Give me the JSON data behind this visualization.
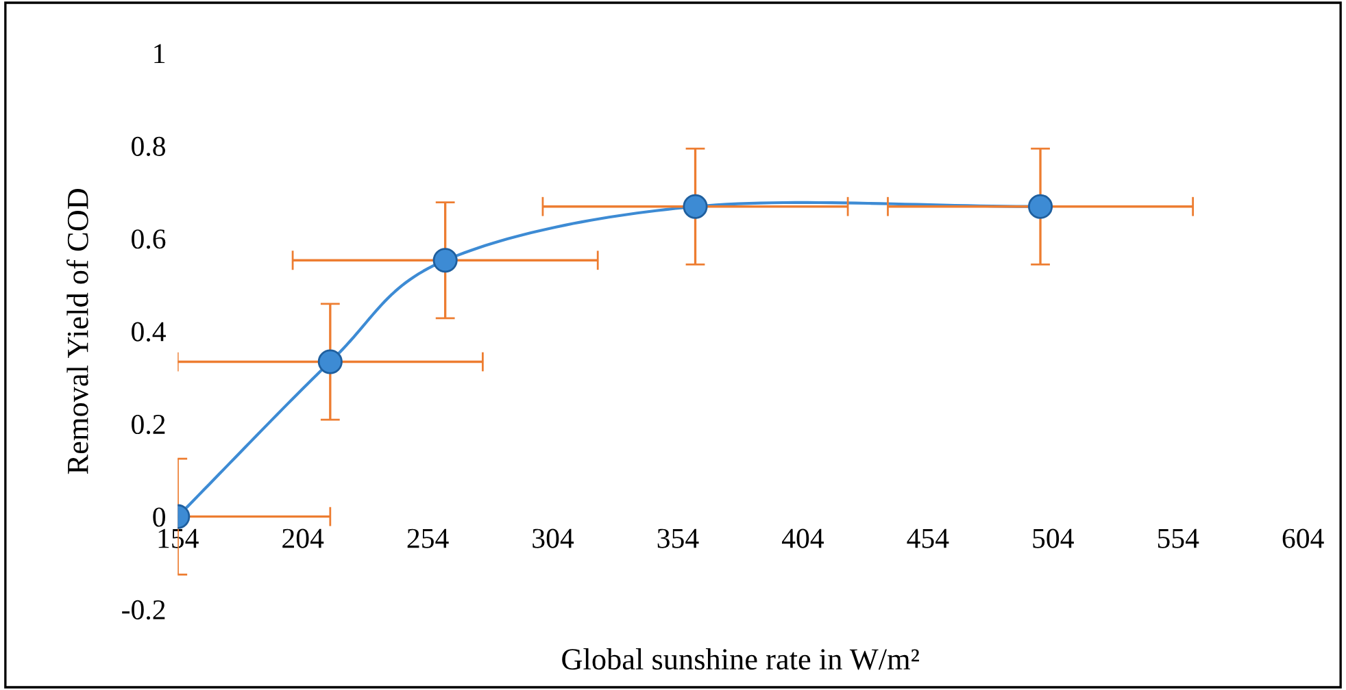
{
  "chart_data": {
    "type": "line",
    "xlabel": "Global sunshine rate in W/m²",
    "ylabel": "Removal Yield of COD",
    "x": [
      154,
      215,
      261,
      361,
      499
    ],
    "series": [
      {
        "color": "#3d8bd4",
        "values": [
          0,
          0.334,
          0.553,
          0.669,
          0.669
        ],
        "errors": [
          0.125,
          0.125,
          0.125,
          0.125,
          0.125
        ],
        "xerrors": [
          [
            154,
            215
          ],
          61,
          61,
          61,
          61
        ]
      }
    ],
    "xlim": [
      154,
      604
    ],
    "xticks": [
      154,
      204,
      254,
      304,
      354,
      404,
      454,
      504,
      554,
      604
    ],
    "ylim": [
      -0.2,
      1
    ],
    "yticks": [
      -0.2,
      0,
      0.2,
      0.4,
      0.6,
      0.8,
      1
    ],
    "grid": false,
    "legend": false,
    "marker": "circle",
    "line_style": "solid"
  }
}
